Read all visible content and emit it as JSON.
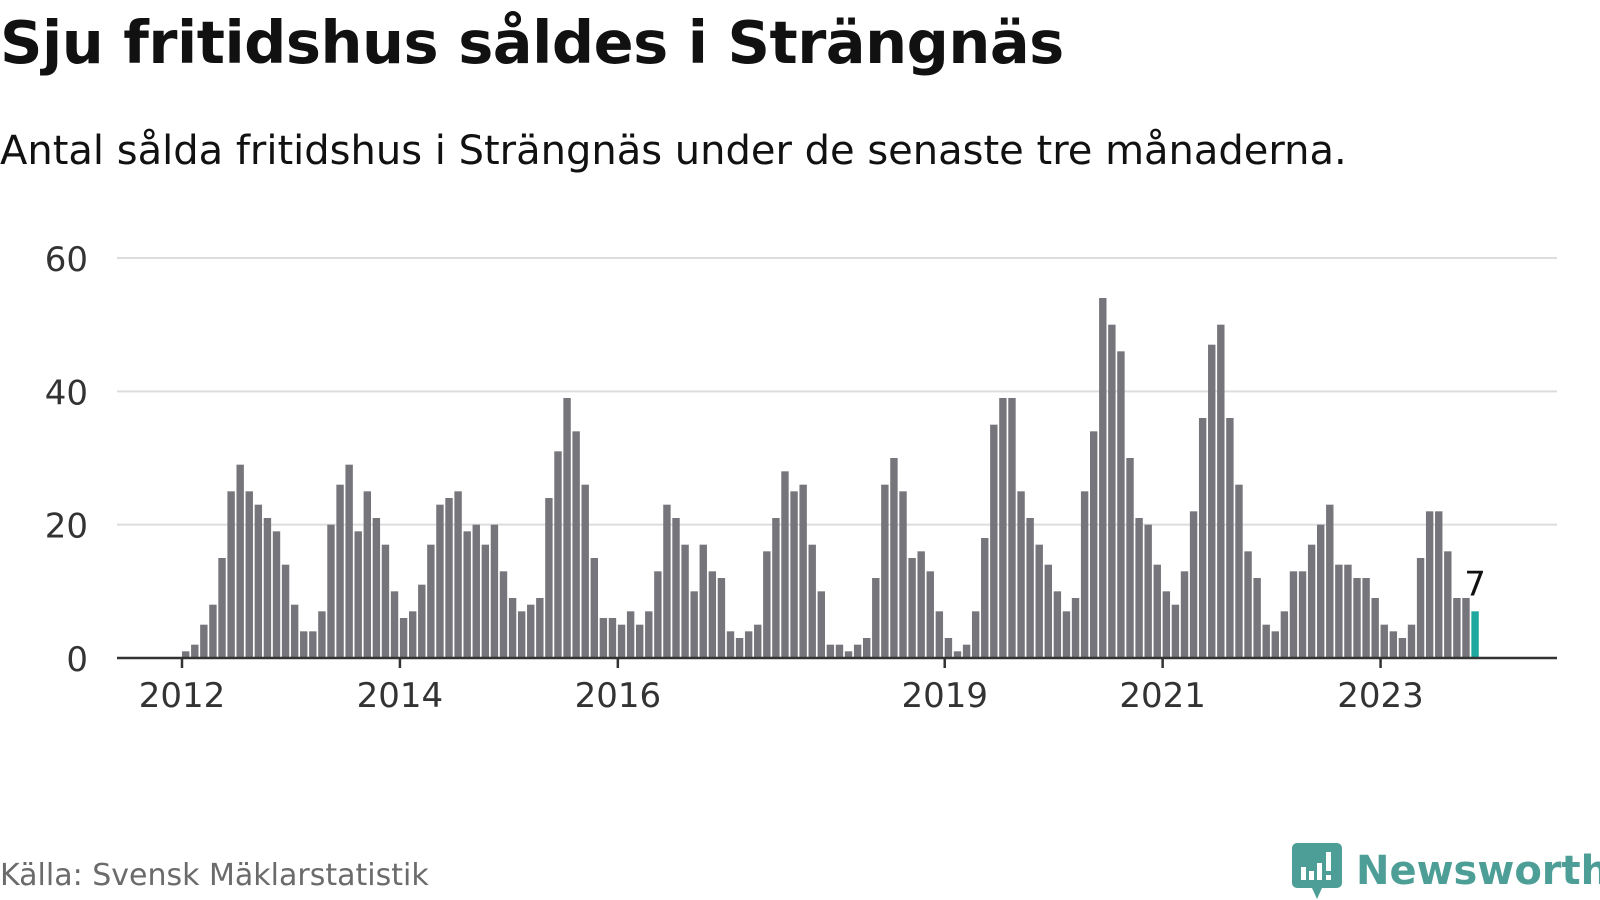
{
  "title": "Sju fritidshus såldes i Strängnäs",
  "subtitle": "Antal sålda fritidshus i Strängnäs under de senaste tre månaderna.",
  "source": "Källa: Svensk Mäklarstatistik",
  "brand": {
    "name": "Newsworthy",
    "color": "#4d9e96"
  },
  "colors": {
    "bar": "#76757b",
    "highlight": "#1ea8a0",
    "grid": "#dddddd",
    "axis": "#333333",
    "tick_text": "#333333"
  },
  "chart_data": {
    "type": "bar",
    "xlabel": "",
    "ylabel": "",
    "ylim": [
      0,
      60
    ],
    "yticks": [
      0,
      20,
      40,
      60
    ],
    "grid": true,
    "start_month": "2012-01",
    "x_ticks": [
      {
        "label": "2012",
        "month": "2012-01"
      },
      {
        "label": "2014",
        "month": "2014-01"
      },
      {
        "label": "2016",
        "month": "2016-01"
      },
      {
        "label": "2019",
        "month": "2019-01"
      },
      {
        "label": "2021",
        "month": "2021-01"
      },
      {
        "label": "2023",
        "month": "2023-01"
      }
    ],
    "values": [
      1,
      2,
      5,
      8,
      15,
      25,
      29,
      25,
      23,
      21,
      19,
      14,
      8,
      4,
      4,
      7,
      20,
      26,
      29,
      19,
      25,
      21,
      17,
      10,
      6,
      7,
      11,
      17,
      23,
      24,
      25,
      19,
      20,
      17,
      20,
      13,
      9,
      7,
      8,
      9,
      24,
      31,
      39,
      34,
      26,
      15,
      6,
      6,
      5,
      7,
      5,
      7,
      13,
      23,
      21,
      17,
      10,
      17,
      13,
      12,
      4,
      3,
      4,
      5,
      16,
      21,
      28,
      25,
      26,
      17,
      10,
      2,
      2,
      1,
      2,
      3,
      12,
      26,
      30,
      25,
      15,
      16,
      13,
      7,
      3,
      1,
      2,
      7,
      18,
      35,
      39,
      39,
      25,
      21,
      17,
      14,
      10,
      7,
      9,
      25,
      34,
      54,
      50,
      46,
      30,
      21,
      20,
      14,
      10,
      8,
      13,
      22,
      36,
      47,
      50,
      36,
      26,
      16,
      12,
      5,
      4,
      7,
      13,
      13,
      17,
      20,
      23,
      14,
      14,
      12,
      12,
      9,
      5,
      4,
      3,
      5,
      15,
      22,
      22,
      16,
      9,
      9,
      7
    ],
    "highlight_last": true,
    "annotation": {
      "label": "7"
    }
  }
}
